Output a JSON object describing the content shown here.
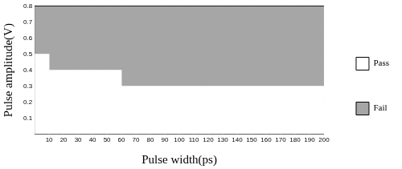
{
  "chart_data": {
    "type": "bar",
    "x_label": "Pulse width(ps)",
    "y_label": "Pulse amplitude(V)",
    "bins": [
      0,
      10,
      20,
      30,
      40,
      50,
      60,
      70,
      80,
      90,
      100,
      110,
      120,
      130,
      140,
      150,
      160,
      170,
      180,
      190,
      200
    ],
    "series": [
      {
        "name": "Pass",
        "color": "#ffffff",
        "values": [
          0.5,
          0.4,
          0.4,
          0.4,
          0.4,
          0.4,
          0.3,
          0.3,
          0.3,
          0.3,
          0.3,
          0.3,
          0.3,
          0.3,
          0.3,
          0.3,
          0.3,
          0.3,
          0.3,
          0.3
        ]
      },
      {
        "name": "Fail",
        "color": "#a6a6a6",
        "values": [
          0.3,
          0.4,
          0.4,
          0.4,
          0.4,
          0.4,
          0.5,
          0.5,
          0.5,
          0.5,
          0.5,
          0.5,
          0.5,
          0.5,
          0.5,
          0.5,
          0.5,
          0.5,
          0.5,
          0.5
        ]
      }
    ],
    "stacked": true,
    "xlim": [
      0,
      200
    ],
    "xticks": [
      10,
      20,
      30,
      40,
      50,
      60,
      70,
      80,
      90,
      100,
      110,
      120,
      130,
      140,
      150,
      160,
      170,
      180,
      190,
      200
    ],
    "ylim": [
      0,
      0.8
    ],
    "yticks": [
      0.1,
      0.2,
      0.3,
      0.4,
      0.5,
      0.6,
      0.7,
      0.8
    ],
    "grid": true,
    "legend": "right"
  }
}
